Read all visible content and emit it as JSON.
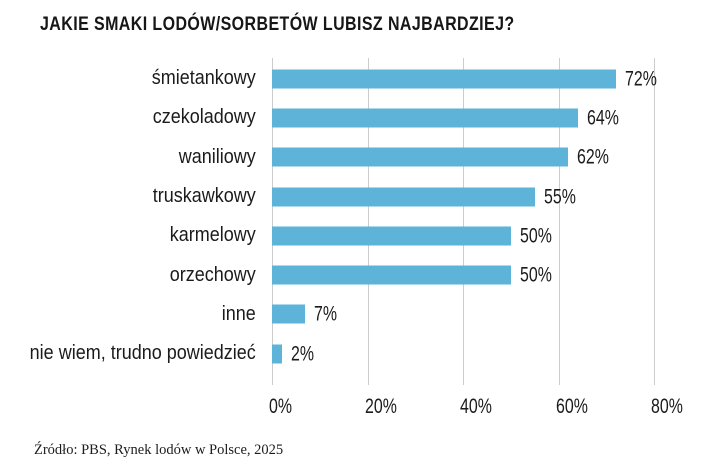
{
  "header": {
    "title": "JAKIE SMAKI LODÓW/SORBETÓW LUBISZ NAJBARDZIEJ?"
  },
  "footer": {
    "source": "Źródło: PBS, Rynek lodów w Polsce, 2025"
  },
  "colors": {
    "bar": "#5EB3D8",
    "grid": "#cccccc",
    "text": "#1b1b1b"
  },
  "chart_data": {
    "type": "bar",
    "orientation": "horizontal",
    "title": "JAKIE SMAKI LODÓW/SORBETÓW LUBISZ NAJBARDZIEJ?",
    "categories": [
      "śmietankowy",
      "czekoladowy",
      "waniliowy",
      "truskawkowy",
      "karmelowy",
      "orzechowy",
      "inne",
      "nie wiem, trudno powiedzieć"
    ],
    "values": [
      72,
      64,
      62,
      55,
      50,
      50,
      7,
      2
    ],
    "value_labels": [
      "72%",
      "64%",
      "62%",
      "55%",
      "50%",
      "50%",
      "7%",
      "2%"
    ],
    "xlabel": "",
    "ylabel": "",
    "xlim": [
      0,
      80
    ],
    "xticks": [
      0,
      20,
      40,
      60,
      80
    ],
    "xtick_labels": [
      "0%",
      "20%",
      "40%",
      "60%",
      "80%"
    ],
    "grid": "vertical-only",
    "legend": false,
    "source": "Źródło: PBS, Rynek lodów w Polsce, 2025"
  }
}
